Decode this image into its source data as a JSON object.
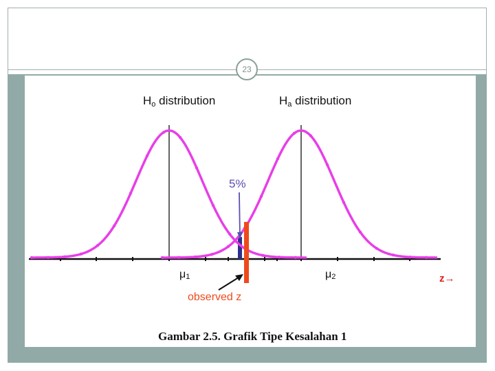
{
  "slide": {
    "number": "23",
    "caption": "Gambar 2.5. Grafik Tipe Kesalahan 1"
  },
  "diagram": {
    "h0_label_main": "H",
    "h0_label_sub": "o",
    "h0_label_rest": " distribution",
    "ha_label_main": "H",
    "ha_label_sub": "a",
    "ha_label_rest": " distribution",
    "alpha_label": "5%",
    "mu1_label_main": "μ",
    "mu1_label_sub": "1",
    "mu2_label_main": "μ",
    "mu2_label_sub": "2",
    "observed_label": "observed z",
    "axis_symbol": "z→",
    "colors": {
      "curve": "#e83ee8",
      "observed": "#ee4a1c",
      "rejection_region": "#2e2f8c",
      "annotation": "#5a4fb0",
      "axis": "#111111"
    }
  }
}
